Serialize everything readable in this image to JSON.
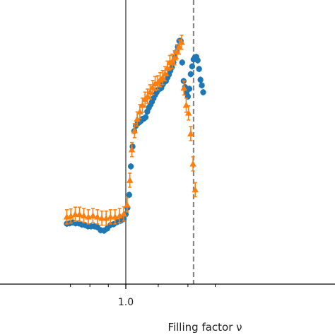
{
  "chart_data": {
    "type": "scatter",
    "title": "",
    "xlabel": "Filling factor ν",
    "ylabel": "",
    "xscale": "log",
    "xlim": [
      0.84,
      1.32
    ],
    "ylim": [
      0,
      1
    ],
    "x_tick_labels": [
      {
        "x": 1.0,
        "label": "1.0"
      }
    ],
    "vlines": [
      {
        "x": 1.0,
        "style": "solid",
        "color": "#7f7f7f"
      },
      {
        "x": 1.22,
        "style": "dashed",
        "color": "#7f7f7f"
      }
    ],
    "grid": false,
    "legend": "none",
    "series": [
      {
        "marker": "circle",
        "color": "#1f77b4",
        "points": [
          [
            0.841,
            0.481
          ],
          [
            0.848,
            0.482
          ],
          [
            0.856,
            0.484
          ],
          [
            0.863,
            0.482
          ],
          [
            0.871,
            0.482
          ],
          [
            0.879,
            0.479
          ],
          [
            0.887,
            0.478
          ],
          [
            0.895,
            0.475
          ],
          [
            0.903,
            0.475
          ],
          [
            0.912,
            0.475
          ],
          [
            0.92,
            0.473
          ],
          [
            0.929,
            0.466
          ],
          [
            0.938,
            0.465
          ],
          [
            0.947,
            0.47
          ],
          [
            0.956,
            0.478
          ],
          [
            0.965,
            0.48
          ],
          [
            0.975,
            0.485
          ],
          [
            0.985,
            0.488
          ],
          [
            0.994,
            0.492
          ],
          [
            1.0,
            0.503
          ],
          [
            1.005,
            0.518
          ],
          [
            1.01,
            0.548
          ],
          [
            1.015,
            0.614
          ],
          [
            1.02,
            0.66
          ],
          [
            1.025,
            0.696
          ],
          [
            1.03,
            0.708
          ],
          [
            1.035,
            0.713
          ],
          [
            1.04,
            0.716
          ],
          [
            1.045,
            0.719
          ],
          [
            1.05,
            0.724
          ],
          [
            1.055,
            0.725
          ],
          [
            1.06,
            0.728
          ],
          [
            1.065,
            0.741
          ],
          [
            1.07,
            0.75
          ],
          [
            1.075,
            0.757
          ],
          [
            1.08,
            0.764
          ],
          [
            1.085,
            0.772
          ],
          [
            1.09,
            0.78
          ],
          [
            1.095,
            0.786
          ],
          [
            1.1,
            0.792
          ],
          [
            1.105,
            0.794
          ],
          [
            1.11,
            0.796
          ],
          [
            1.115,
            0.804
          ],
          [
            1.12,
            0.81
          ],
          [
            1.125,
            0.812
          ],
          [
            1.13,
            0.82
          ],
          [
            1.135,
            0.827
          ],
          [
            1.14,
            0.836
          ],
          [
            1.145,
            0.844
          ],
          [
            1.15,
            0.855
          ],
          [
            1.155,
            0.866
          ],
          [
            1.16,
            0.879
          ],
          [
            1.165,
            0.891
          ],
          [
            1.17,
            0.905
          ],
          [
            1.175,
            0.905
          ],
          [
            1.18,
            0.855
          ],
          [
            1.185,
            0.812
          ],
          [
            1.19,
            0.798
          ],
          [
            1.195,
            0.784
          ],
          [
            1.2,
            0.776
          ],
          [
            1.205,
            0.794
          ],
          [
            1.21,
            0.828
          ],
          [
            1.215,
            0.846
          ],
          [
            1.22,
            0.862
          ],
          [
            1.225,
            0.867
          ],
          [
            1.23,
            0.868
          ],
          [
            1.235,
            0.86
          ],
          [
            1.24,
            0.84
          ],
          [
            1.245,
            0.815
          ],
          [
            1.25,
            0.802
          ],
          [
            1.255,
            0.786
          ]
        ]
      },
      {
        "marker": "triangle",
        "color": "#ff7f0e",
        "points": [
          [
            0.841,
            0.497
          ],
          [
            0.851,
            0.499
          ],
          [
            0.862,
            0.503
          ],
          [
            0.873,
            0.503
          ],
          [
            0.884,
            0.5
          ],
          [
            0.896,
            0.497
          ],
          [
            0.908,
            0.5
          ],
          [
            0.92,
            0.497
          ],
          [
            0.932,
            0.494
          ],
          [
            0.944,
            0.494
          ],
          [
            0.956,
            0.497
          ],
          [
            0.969,
            0.497
          ],
          [
            0.982,
            0.5
          ],
          [
            0.994,
            0.504
          ],
          [
            1.004,
            0.525
          ],
          [
            1.012,
            0.582
          ],
          [
            1.018,
            0.653
          ],
          [
            1.026,
            0.697
          ],
          [
            1.034,
            0.724
          ],
          [
            1.042,
            0.741
          ],
          [
            1.05,
            0.756
          ],
          [
            1.058,
            0.77
          ],
          [
            1.066,
            0.777
          ],
          [
            1.074,
            0.787
          ],
          [
            1.082,
            0.797
          ],
          [
            1.09,
            0.806
          ],
          [
            1.098,
            0.808
          ],
          [
            1.106,
            0.815
          ],
          [
            1.114,
            0.82
          ],
          [
            1.122,
            0.829
          ],
          [
            1.13,
            0.842
          ],
          [
            1.138,
            0.855
          ],
          [
            1.146,
            0.858
          ],
          [
            1.154,
            0.866
          ],
          [
            1.162,
            0.88
          ],
          [
            1.17,
            0.891
          ],
          [
            1.178,
            0.902
          ],
          [
            1.186,
            0.796
          ],
          [
            1.194,
            0.756
          ],
          [
            1.202,
            0.738
          ],
          [
            1.21,
            0.69
          ],
          [
            1.218,
            0.62
          ],
          [
            1.226,
            0.56
          ]
        ]
      }
    ]
  }
}
